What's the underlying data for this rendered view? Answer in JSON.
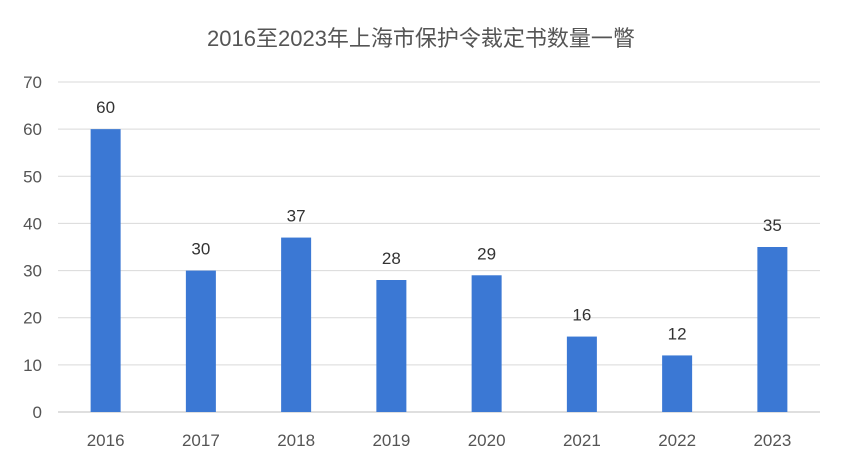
{
  "chart_data": {
    "type": "bar",
    "title": "2016至2023年上海市保护令裁定书数量一瞥",
    "categories": [
      "2016",
      "2017",
      "2018",
      "2019",
      "2020",
      "2021",
      "2022",
      "2023"
    ],
    "values": [
      60,
      30,
      37,
      28,
      29,
      16,
      12,
      35
    ],
    "xlabel": "",
    "ylabel": "",
    "ylim": [
      0,
      70
    ],
    "yticks": [
      0,
      10,
      20,
      30,
      40,
      50,
      60,
      70
    ],
    "grid": true,
    "legend": "none",
    "bar_color": "#3b78d4",
    "grid_color": "#d9d9d9"
  }
}
